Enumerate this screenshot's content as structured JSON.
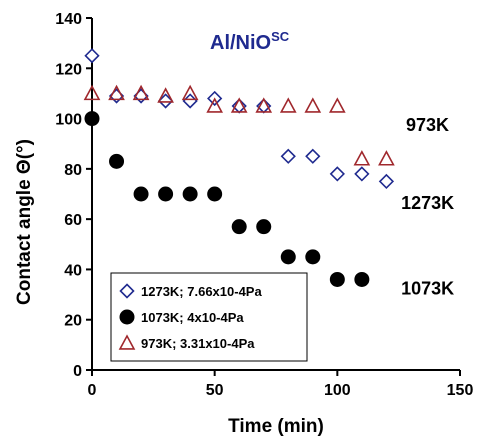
{
  "chart_data": {
    "type": "scatter",
    "title": "Al/NiO",
    "title_superscript": "SC",
    "xlabel": "Time (min)",
    "ylabel": "Contact angle Θ(°)",
    "xlim": [
      0,
      150
    ],
    "ylim": [
      0,
      140
    ],
    "x_ticks": [
      "0",
      "50",
      "100",
      "150"
    ],
    "y_ticks": [
      "0",
      "20",
      "40",
      "60",
      "80",
      "100",
      "120",
      "140"
    ],
    "grid": false,
    "legend_position": "bottom-left",
    "series": [
      {
        "name": "1273K; 7.66x10-4Pa",
        "marker": "diamond-open",
        "color": "#1f2a8f",
        "x": [
          0,
          10,
          20,
          30,
          40,
          50,
          60,
          70,
          80,
          90,
          100,
          110,
          120
        ],
        "y": [
          125,
          109,
          109,
          107,
          107,
          108,
          105,
          105,
          85,
          85,
          78,
          78,
          75
        ]
      },
      {
        "name": "1073K; 4x10-4Pa",
        "marker": "circle-filled",
        "color": "#000000",
        "x": [
          0,
          10,
          20,
          30,
          40,
          50,
          60,
          70,
          80,
          90,
          100,
          110
        ],
        "y": [
          100,
          83,
          70,
          70,
          70,
          70,
          57,
          57,
          45,
          45,
          36,
          36
        ]
      },
      {
        "name": "973K; 3.31x10-4Pa",
        "marker": "triangle-open",
        "color": "#a0282d",
        "x": [
          0,
          10,
          20,
          30,
          40,
          50,
          60,
          70,
          80,
          90,
          100,
          110,
          120
        ],
        "y": [
          110,
          110,
          110,
          109,
          110,
          105,
          105,
          105,
          105,
          105,
          105,
          84,
          84
        ]
      }
    ],
    "annotations": [
      {
        "text": "973K",
        "x": 128,
        "y": 95
      },
      {
        "text": "1273K",
        "x": 126,
        "y": 64
      },
      {
        "text": "1073K",
        "x": 126,
        "y": 30
      }
    ]
  }
}
